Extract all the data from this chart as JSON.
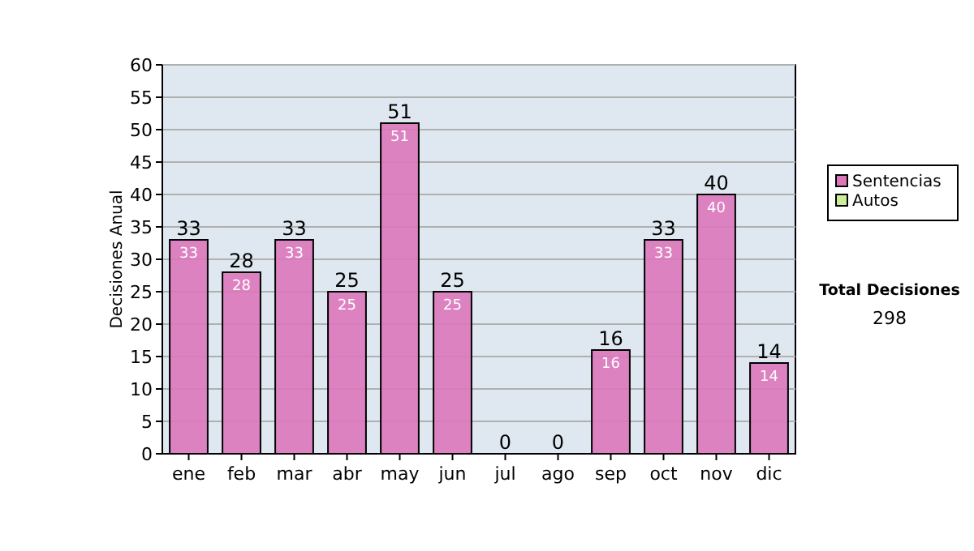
{
  "chart_data": {
    "type": "bar",
    "stacked": true,
    "ylabel": "Decisiones Anual",
    "categories": [
      "ene",
      "feb",
      "mar",
      "abr",
      "may",
      "jun",
      "jul",
      "ago",
      "sep",
      "oct",
      "nov",
      "dic"
    ],
    "series": [
      {
        "name": "Sentencias",
        "color": "#dd77bb",
        "values": [
          33,
          28,
          33,
          25,
          51,
          25,
          0,
          0,
          16,
          33,
          40,
          14
        ],
        "value_labels": [
          "33",
          "28",
          "33",
          "25",
          "51",
          "25",
          null,
          null,
          "16",
          "33",
          "40",
          "14"
        ]
      },
      {
        "name": "Autos",
        "color": "#ccee99",
        "values": [
          0,
          0,
          0,
          0,
          0,
          0,
          0,
          0,
          0,
          0,
          0,
          0
        ]
      }
    ],
    "totals": [
      "33",
      "28",
      "33",
      "25",
      "51",
      "25",
      "0",
      "0",
      "16",
      "33",
      "40",
      "14"
    ],
    "ylim": [
      0,
      60
    ],
    "yticks": [
      0,
      5,
      10,
      15,
      20,
      25,
      30,
      35,
      40,
      45,
      50,
      55,
      60
    ],
    "grid": "y",
    "legend": "right",
    "annotations": [
      "Total Decisiones",
      "298"
    ]
  }
}
